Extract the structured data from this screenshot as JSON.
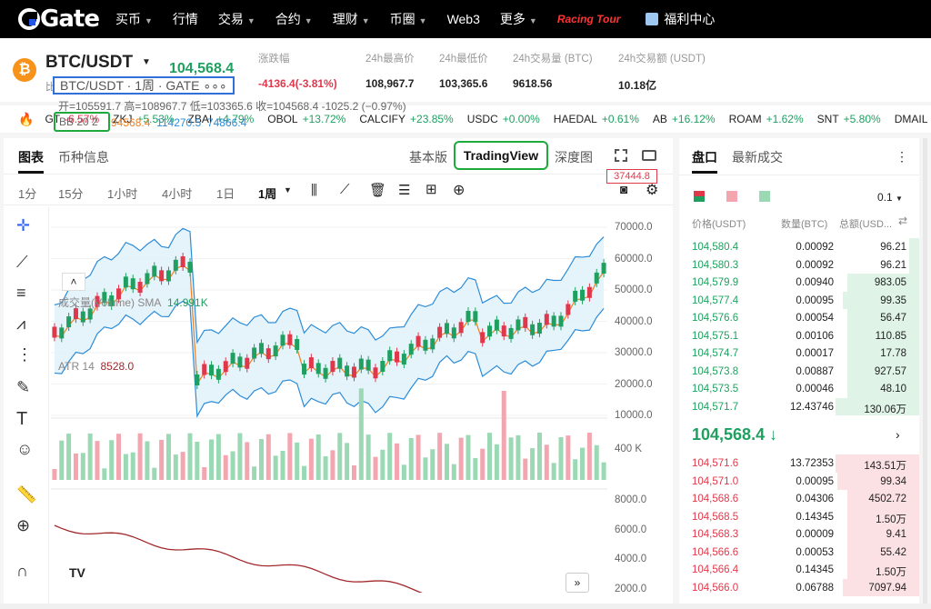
{
  "nav": {
    "logo": "Gate",
    "items": [
      {
        "label": "买币",
        "caret": true
      },
      {
        "label": "行情",
        "caret": false
      },
      {
        "label": "交易",
        "caret": true
      },
      {
        "label": "合约",
        "caret": true
      },
      {
        "label": "理财",
        "caret": true
      },
      {
        "label": "币圈",
        "caret": true
      },
      {
        "label": "Web3",
        "caret": false
      },
      {
        "label": "更多",
        "caret": true
      }
    ],
    "racing": "Racing Tour",
    "welfare": "福利中心"
  },
  "ticker": {
    "pair": "BTC/USDT",
    "sub": "比特币",
    "last": "104,568.4",
    "change_label": "涨跌幅",
    "change": "-4136.4(-3.81%)",
    "high_label": "24h最高价",
    "high": "108,967.7",
    "low_label": "24h最低价",
    "low": "103,365.6",
    "vol_btc_label": "24h交易量 (BTC)",
    "vol_btc": "9618.56",
    "vol_usdt_label": "24h交易额 (USDT)",
    "vol_usdt": "10.18亿"
  },
  "marquee": [
    {
      "sym": "GT",
      "pct": "-6.57%",
      "up": false
    },
    {
      "sym": "ZKJ",
      "pct": "+5.53%",
      "up": true
    },
    {
      "sym": "ZBAI",
      "pct": "+4.79%",
      "up": true
    },
    {
      "sym": "OBOL",
      "pct": "+13.72%",
      "up": true
    },
    {
      "sym": "CALCIFY",
      "pct": "+23.85%",
      "up": true
    },
    {
      "sym": "USDC",
      "pct": "+0.00%",
      "up": true
    },
    {
      "sym": "HAEDAL",
      "pct": "+0.61%",
      "up": true
    },
    {
      "sym": "AB",
      "pct": "+16.12%",
      "up": true
    },
    {
      "sym": "ROAM",
      "pct": "+1.62%",
      "up": true
    },
    {
      "sym": "SNT",
      "pct": "+5.80%",
      "up": true
    },
    {
      "sym": "DMAIL",
      "pct": "",
      "up": true
    }
  ],
  "chart": {
    "tab_chart": "图表",
    "tab_info": "币种信息",
    "mode_basic": "基本版",
    "mode_tv": "TradingView",
    "mode_depth": "深度图",
    "timeframes": [
      "1分",
      "15分",
      "1小时",
      "4小时",
      "1日",
      "1周"
    ],
    "active_tf": "1周",
    "legend": "BTC/USDT · 1周 · GATE",
    "ohlc": "开=105591.7 高=108967.7 低=103365.6 收=104568.4 -1025.2 (−0.97%)",
    "bb": "BB 20 2",
    "bb_mid": "94568.4",
    "bb_up": "114270.5",
    "bb_low": "74866.4",
    "vol_label": "成交量(Volume) SMA",
    "vol_val": "14.991K",
    "atr_label": "ATR 14",
    "atr_val": "8528.0",
    "price_axis": [
      "70000.0",
      "60000.0",
      "50000.0",
      "40000.0",
      "30000.0",
      "20000.0",
      "10000.0"
    ],
    "vol_axis": "400 K",
    "atr_axis": [
      "8000.0",
      "6000.0",
      "4000.0",
      "2000.0"
    ],
    "price_tag": "37444.8"
  },
  "book": {
    "tab_book": "盘口",
    "tab_trades": "最新成交",
    "precision": "0.1",
    "h_price": "价格(USDT)",
    "h_qty": "数量(BTC)",
    "h_total": "总额(USD...",
    "bids_top": [
      [
        "104,580.4",
        "0.00092",
        "96.21",
        0.04
      ],
      [
        "104,580.3",
        "0.00092",
        "96.21",
        0.04
      ],
      [
        "104,579.9",
        "0.00940",
        "983.05",
        0.3
      ],
      [
        "104,577.4",
        "0.00095",
        "99.35",
        0.32
      ],
      [
        "104,576.6",
        "0.00054",
        "56.47",
        0.3
      ],
      [
        "104,575.1",
        "0.00106",
        "110.85",
        0.3
      ],
      [
        "104,574.7",
        "0.00017",
        "17.78",
        0.3
      ],
      [
        "104,573.8",
        "0.00887",
        "927.57",
        0.3
      ],
      [
        "104,573.5",
        "0.00046",
        "48.10",
        0.3
      ],
      [
        "104,571.7",
        "12.43746",
        "130.06万",
        0.35
      ]
    ],
    "mid": "104,568.4 ↓",
    "asks": [
      [
        "104,571.6",
        "13.72353",
        "143.51万",
        0.35
      ],
      [
        "104,571.0",
        "0.00095",
        "99.34",
        0.34
      ],
      [
        "104,568.6",
        "0.04306",
        "4502.72",
        0.3
      ],
      [
        "104,568.5",
        "0.14345",
        "1.50万",
        0.3
      ],
      [
        "104,568.3",
        "0.00009",
        "9.41",
        0.3
      ],
      [
        "104,566.6",
        "0.00053",
        "55.42",
        0.3
      ],
      [
        "104,566.4",
        "0.14345",
        "1.50万",
        0.3
      ],
      [
        "104,566.0",
        "0.06788",
        "7097.94",
        0.32
      ]
    ]
  },
  "colors": {
    "up": "#20a060",
    "down": "#e0384b",
    "tv_highlight": "#1eaa3a",
    "legend_border": "#3070d8"
  }
}
